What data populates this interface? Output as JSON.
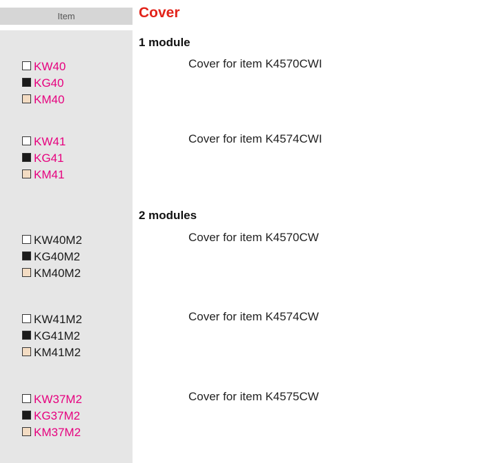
{
  "header": {
    "item_label": "Item",
    "title": "Cover"
  },
  "sections": [
    {
      "title": "1 module",
      "rows": [
        {
          "codes": [
            {
              "code": "KW40",
              "swatch": "#ffffff",
              "color": "#e6007e"
            },
            {
              "code": "KG40",
              "swatch": "#1a1a1a",
              "color": "#e6007e"
            },
            {
              "code": "KM40",
              "swatch": "#f3dcc3",
              "color": "#e6007e"
            }
          ],
          "description": "Cover for item K4570CWI"
        },
        {
          "codes": [
            {
              "code": "KW41",
              "swatch": "#ffffff",
              "color": "#e6007e"
            },
            {
              "code": "KG41",
              "swatch": "#1a1a1a",
              "color": "#e6007e"
            },
            {
              "code": "KM41",
              "swatch": "#f3dcc3",
              "color": "#e6007e"
            }
          ],
          "description": "Cover for item K4574CWI"
        }
      ]
    },
    {
      "title": "2 modules",
      "rows": [
        {
          "codes": [
            {
              "code": "KW40M2",
              "swatch": "#ffffff",
              "color": "#1a1a1a"
            },
            {
              "code": "KG40M2",
              "swatch": "#1a1a1a",
              "color": "#1a1a1a"
            },
            {
              "code": "KM40M2",
              "swatch": "#f3dcc3",
              "color": "#1a1a1a"
            }
          ],
          "description": "Cover for item K4570CW"
        },
        {
          "codes": [
            {
              "code": "KW41M2",
              "swatch": "#ffffff",
              "color": "#1a1a1a"
            },
            {
              "code": "KG41M2",
              "swatch": "#1a1a1a",
              "color": "#1a1a1a"
            },
            {
              "code": "KM41M2",
              "swatch": "#f3dcc3",
              "color": "#1a1a1a"
            }
          ],
          "description": "Cover for item K4574CW"
        },
        {
          "codes": [
            {
              "code": "KW37M2",
              "swatch": "#ffffff",
              "color": "#e6007e"
            },
            {
              "code": "KG37M2",
              "swatch": "#1a1a1a",
              "color": "#e6007e"
            },
            {
              "code": "KM37M2",
              "swatch": "#f3dcc3",
              "color": "#e6007e"
            }
          ],
          "description": "Cover for item K4575CW"
        }
      ]
    }
  ]
}
